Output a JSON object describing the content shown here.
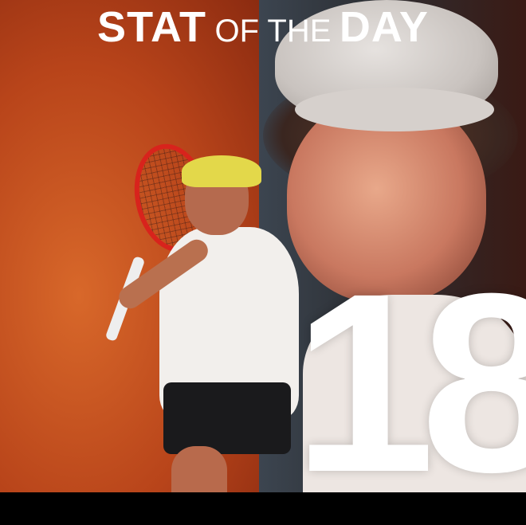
{
  "title": {
    "part1": "STAT",
    "part2": "OF THE",
    "part3": "DAY"
  },
  "stat_value": "18",
  "colors": {
    "left_background": "#c8501c",
    "right_background": "#2d3035",
    "text": "#ffffff",
    "racket": "#d8231c",
    "cap": "#e3d84a"
  }
}
